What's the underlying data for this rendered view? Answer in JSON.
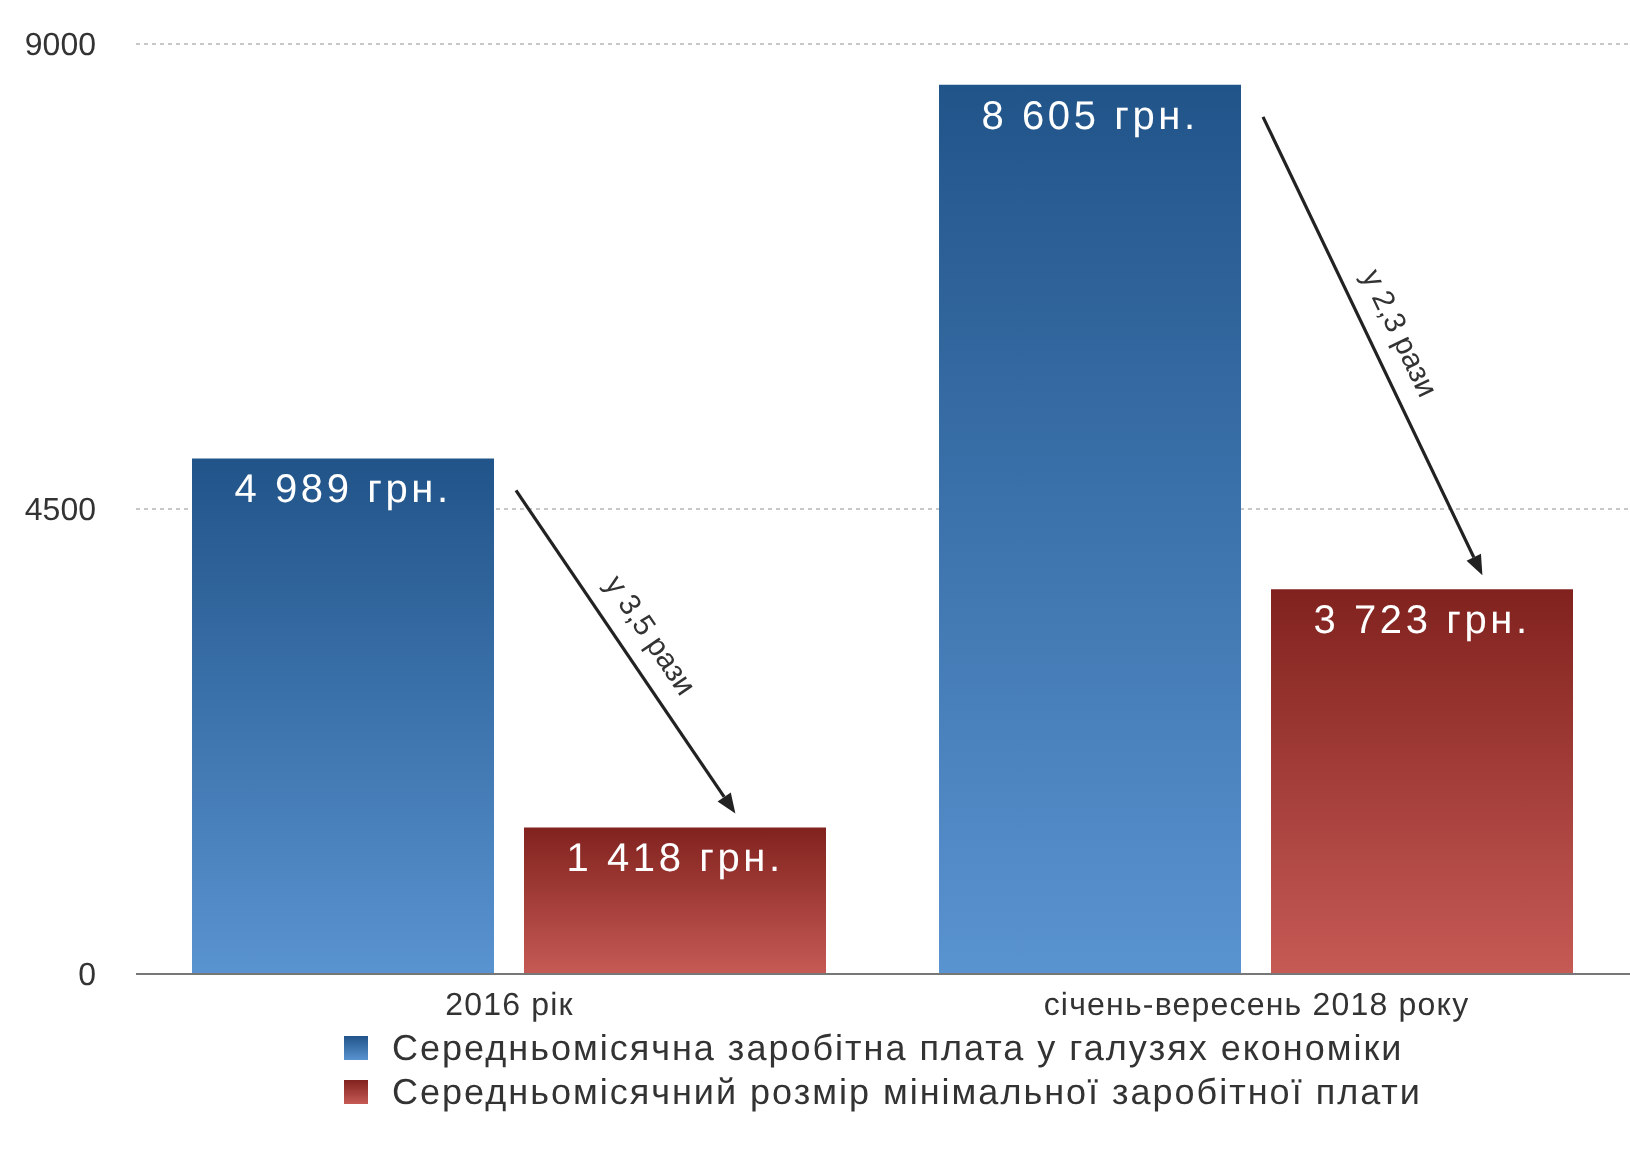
{
  "chart_data": {
    "type": "bar",
    "categories": [
      "2016 рік",
      "січень-вересень 2018 року"
    ],
    "series": [
      {
        "name": "Середньомісячна заробітна плата у галузях економіки",
        "color": "#2f78c4",
        "values": [
          4989,
          8605
        ],
        "value_labels": [
          "4 989 грн.",
          "8 605 грн."
        ]
      },
      {
        "name": "Середньомісячний розмір мінімальної заробітної плати",
        "color": "#b8312b",
        "values": [
          1418,
          3723
        ],
        "value_labels": [
          "1 418 грн.",
          "3 723 грн."
        ]
      }
    ],
    "ylim": [
      0,
      9000
    ],
    "yticks": [
      0,
      4500,
      9000
    ],
    "grid": "y",
    "legend": "bottom",
    "annotations": [
      "у 3,5 рази",
      "у 2,3 рази"
    ]
  }
}
